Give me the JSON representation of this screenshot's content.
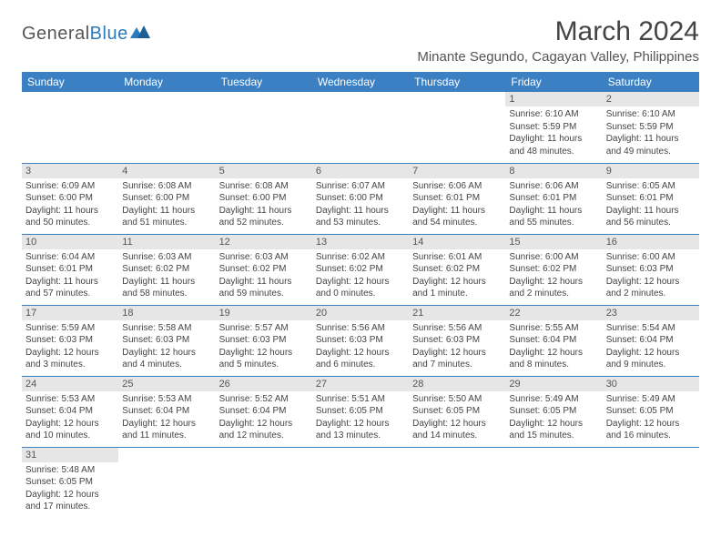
{
  "logo": {
    "text1": "General",
    "text2": "Blue"
  },
  "title": "March 2024",
  "subtitle": "Minante Segundo, Cagayan Valley, Philippines",
  "colors": {
    "header_bg": "#3a80c3",
    "header_text": "#ffffff",
    "daynum_bg": "#e6e6e6",
    "cell_border": "#3a80c3",
    "logo_gray": "#555555",
    "logo_blue": "#2b7bbf"
  },
  "day_headers": [
    "Sunday",
    "Monday",
    "Tuesday",
    "Wednesday",
    "Thursday",
    "Friday",
    "Saturday"
  ],
  "weeks": [
    [
      {
        "n": "",
        "sr": "",
        "ss": "",
        "d1": "",
        "d2": "",
        "empty": true
      },
      {
        "n": "",
        "sr": "",
        "ss": "",
        "d1": "",
        "d2": "",
        "empty": true
      },
      {
        "n": "",
        "sr": "",
        "ss": "",
        "d1": "",
        "d2": "",
        "empty": true
      },
      {
        "n": "",
        "sr": "",
        "ss": "",
        "d1": "",
        "d2": "",
        "empty": true
      },
      {
        "n": "",
        "sr": "",
        "ss": "",
        "d1": "",
        "d2": "",
        "empty": true
      },
      {
        "n": "1",
        "sr": "Sunrise: 6:10 AM",
        "ss": "Sunset: 5:59 PM",
        "d1": "Daylight: 11 hours",
        "d2": "and 48 minutes."
      },
      {
        "n": "2",
        "sr": "Sunrise: 6:10 AM",
        "ss": "Sunset: 5:59 PM",
        "d1": "Daylight: 11 hours",
        "d2": "and 49 minutes."
      }
    ],
    [
      {
        "n": "3",
        "sr": "Sunrise: 6:09 AM",
        "ss": "Sunset: 6:00 PM",
        "d1": "Daylight: 11 hours",
        "d2": "and 50 minutes."
      },
      {
        "n": "4",
        "sr": "Sunrise: 6:08 AM",
        "ss": "Sunset: 6:00 PM",
        "d1": "Daylight: 11 hours",
        "d2": "and 51 minutes."
      },
      {
        "n": "5",
        "sr": "Sunrise: 6:08 AM",
        "ss": "Sunset: 6:00 PM",
        "d1": "Daylight: 11 hours",
        "d2": "and 52 minutes."
      },
      {
        "n": "6",
        "sr": "Sunrise: 6:07 AM",
        "ss": "Sunset: 6:00 PM",
        "d1": "Daylight: 11 hours",
        "d2": "and 53 minutes."
      },
      {
        "n": "7",
        "sr": "Sunrise: 6:06 AM",
        "ss": "Sunset: 6:01 PM",
        "d1": "Daylight: 11 hours",
        "d2": "and 54 minutes."
      },
      {
        "n": "8",
        "sr": "Sunrise: 6:06 AM",
        "ss": "Sunset: 6:01 PM",
        "d1": "Daylight: 11 hours",
        "d2": "and 55 minutes."
      },
      {
        "n": "9",
        "sr": "Sunrise: 6:05 AM",
        "ss": "Sunset: 6:01 PM",
        "d1": "Daylight: 11 hours",
        "d2": "and 56 minutes."
      }
    ],
    [
      {
        "n": "10",
        "sr": "Sunrise: 6:04 AM",
        "ss": "Sunset: 6:01 PM",
        "d1": "Daylight: 11 hours",
        "d2": "and 57 minutes."
      },
      {
        "n": "11",
        "sr": "Sunrise: 6:03 AM",
        "ss": "Sunset: 6:02 PM",
        "d1": "Daylight: 11 hours",
        "d2": "and 58 minutes."
      },
      {
        "n": "12",
        "sr": "Sunrise: 6:03 AM",
        "ss": "Sunset: 6:02 PM",
        "d1": "Daylight: 11 hours",
        "d2": "and 59 minutes."
      },
      {
        "n": "13",
        "sr": "Sunrise: 6:02 AM",
        "ss": "Sunset: 6:02 PM",
        "d1": "Daylight: 12 hours",
        "d2": "and 0 minutes."
      },
      {
        "n": "14",
        "sr": "Sunrise: 6:01 AM",
        "ss": "Sunset: 6:02 PM",
        "d1": "Daylight: 12 hours",
        "d2": "and 1 minute."
      },
      {
        "n": "15",
        "sr": "Sunrise: 6:00 AM",
        "ss": "Sunset: 6:02 PM",
        "d1": "Daylight: 12 hours",
        "d2": "and 2 minutes."
      },
      {
        "n": "16",
        "sr": "Sunrise: 6:00 AM",
        "ss": "Sunset: 6:03 PM",
        "d1": "Daylight: 12 hours",
        "d2": "and 2 minutes."
      }
    ],
    [
      {
        "n": "17",
        "sr": "Sunrise: 5:59 AM",
        "ss": "Sunset: 6:03 PM",
        "d1": "Daylight: 12 hours",
        "d2": "and 3 minutes."
      },
      {
        "n": "18",
        "sr": "Sunrise: 5:58 AM",
        "ss": "Sunset: 6:03 PM",
        "d1": "Daylight: 12 hours",
        "d2": "and 4 minutes."
      },
      {
        "n": "19",
        "sr": "Sunrise: 5:57 AM",
        "ss": "Sunset: 6:03 PM",
        "d1": "Daylight: 12 hours",
        "d2": "and 5 minutes."
      },
      {
        "n": "20",
        "sr": "Sunrise: 5:56 AM",
        "ss": "Sunset: 6:03 PM",
        "d1": "Daylight: 12 hours",
        "d2": "and 6 minutes."
      },
      {
        "n": "21",
        "sr": "Sunrise: 5:56 AM",
        "ss": "Sunset: 6:03 PM",
        "d1": "Daylight: 12 hours",
        "d2": "and 7 minutes."
      },
      {
        "n": "22",
        "sr": "Sunrise: 5:55 AM",
        "ss": "Sunset: 6:04 PM",
        "d1": "Daylight: 12 hours",
        "d2": "and 8 minutes."
      },
      {
        "n": "23",
        "sr": "Sunrise: 5:54 AM",
        "ss": "Sunset: 6:04 PM",
        "d1": "Daylight: 12 hours",
        "d2": "and 9 minutes."
      }
    ],
    [
      {
        "n": "24",
        "sr": "Sunrise: 5:53 AM",
        "ss": "Sunset: 6:04 PM",
        "d1": "Daylight: 12 hours",
        "d2": "and 10 minutes."
      },
      {
        "n": "25",
        "sr": "Sunrise: 5:53 AM",
        "ss": "Sunset: 6:04 PM",
        "d1": "Daylight: 12 hours",
        "d2": "and 11 minutes."
      },
      {
        "n": "26",
        "sr": "Sunrise: 5:52 AM",
        "ss": "Sunset: 6:04 PM",
        "d1": "Daylight: 12 hours",
        "d2": "and 12 minutes."
      },
      {
        "n": "27",
        "sr": "Sunrise: 5:51 AM",
        "ss": "Sunset: 6:05 PM",
        "d1": "Daylight: 12 hours",
        "d2": "and 13 minutes."
      },
      {
        "n": "28",
        "sr": "Sunrise: 5:50 AM",
        "ss": "Sunset: 6:05 PM",
        "d1": "Daylight: 12 hours",
        "d2": "and 14 minutes."
      },
      {
        "n": "29",
        "sr": "Sunrise: 5:49 AM",
        "ss": "Sunset: 6:05 PM",
        "d1": "Daylight: 12 hours",
        "d2": "and 15 minutes."
      },
      {
        "n": "30",
        "sr": "Sunrise: 5:49 AM",
        "ss": "Sunset: 6:05 PM",
        "d1": "Daylight: 12 hours",
        "d2": "and 16 minutes."
      }
    ],
    [
      {
        "n": "31",
        "sr": "Sunrise: 5:48 AM",
        "ss": "Sunset: 6:05 PM",
        "d1": "Daylight: 12 hours",
        "d2": "and 17 minutes."
      },
      {
        "n": "",
        "sr": "",
        "ss": "",
        "d1": "",
        "d2": "",
        "empty": true,
        "noborder": true
      },
      {
        "n": "",
        "sr": "",
        "ss": "",
        "d1": "",
        "d2": "",
        "empty": true,
        "noborder": true
      },
      {
        "n": "",
        "sr": "",
        "ss": "",
        "d1": "",
        "d2": "",
        "empty": true,
        "noborder": true
      },
      {
        "n": "",
        "sr": "",
        "ss": "",
        "d1": "",
        "d2": "",
        "empty": true,
        "noborder": true
      },
      {
        "n": "",
        "sr": "",
        "ss": "",
        "d1": "",
        "d2": "",
        "empty": true,
        "noborder": true
      },
      {
        "n": "",
        "sr": "",
        "ss": "",
        "d1": "",
        "d2": "",
        "empty": true,
        "noborder": true
      }
    ]
  ]
}
